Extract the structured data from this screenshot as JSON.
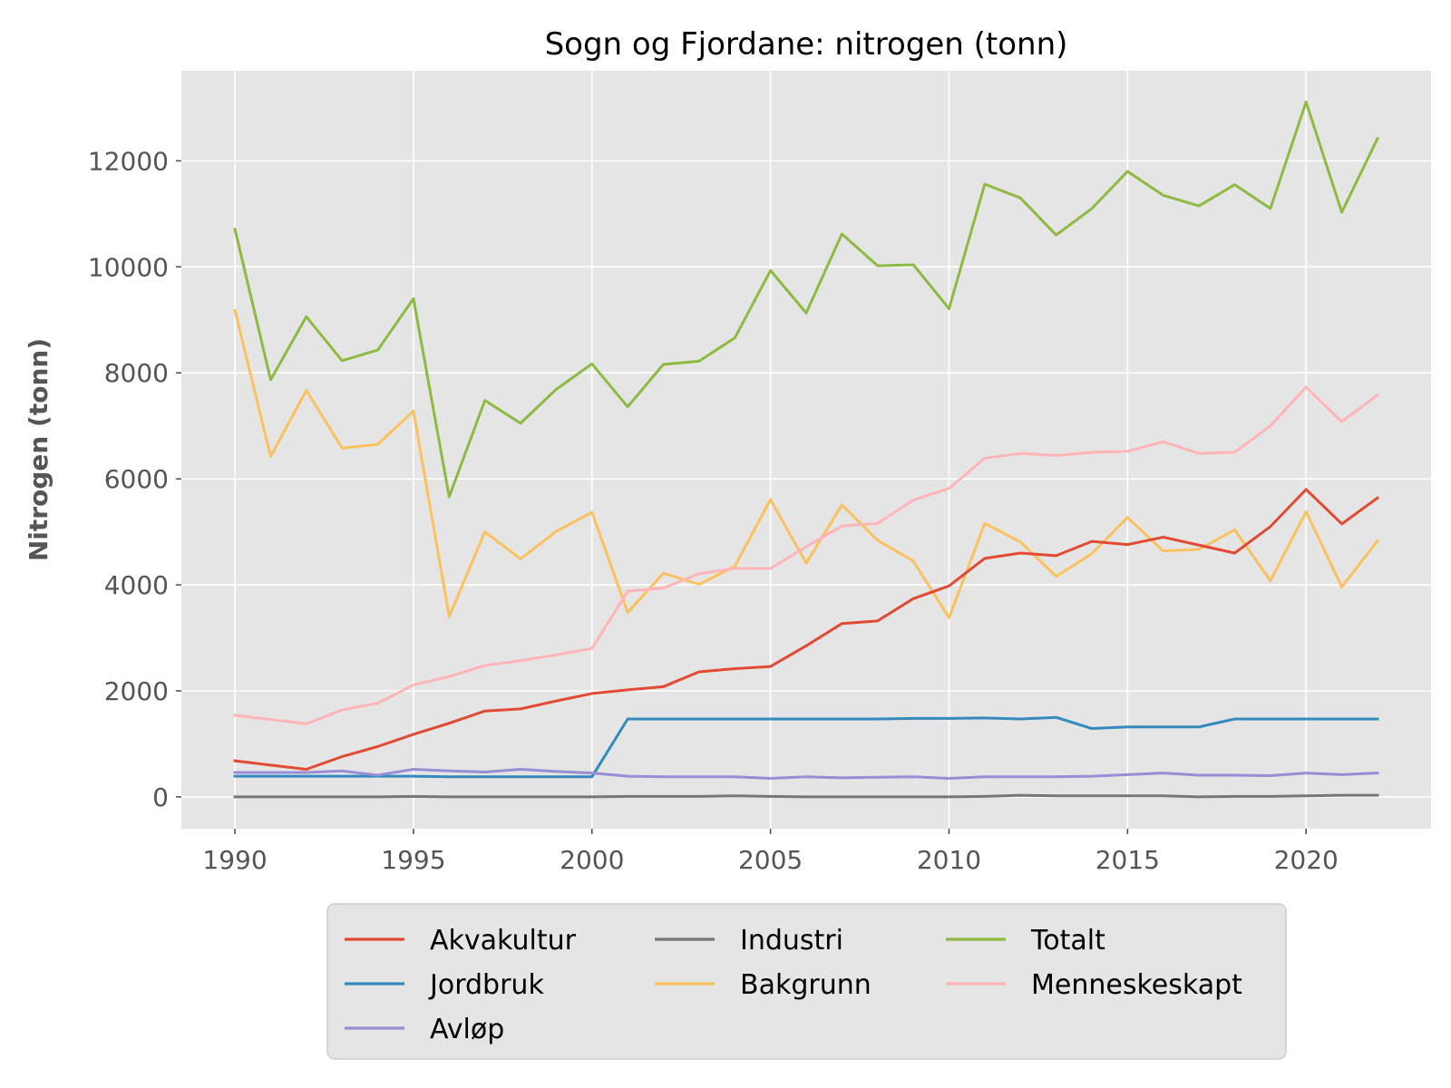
{
  "chart_data": {
    "type": "line",
    "title": "Sogn og Fjordane: nitrogen (tonn)",
    "xlabel": "",
    "ylabel": "Nitrogen (tonn)",
    "xlim": [
      1988.5,
      2023.5
    ],
    "ylim": [
      -600,
      13700
    ],
    "xticks": [
      1990,
      1995,
      2000,
      2005,
      2010,
      2015,
      2020
    ],
    "yticks": [
      0,
      2000,
      4000,
      6000,
      8000,
      10000,
      12000
    ],
    "grid": true,
    "legend_placement": "bottom-center",
    "x": [
      1990,
      1991,
      1992,
      1993,
      1994,
      1995,
      1996,
      1997,
      1998,
      1999,
      2000,
      2001,
      2002,
      2003,
      2004,
      2005,
      2006,
      2007,
      2008,
      2009,
      2010,
      2011,
      2012,
      2013,
      2014,
      2015,
      2016,
      2017,
      2018,
      2019,
      2020,
      2021,
      2022
    ],
    "series": [
      {
        "name": "Akvakultur",
        "color": "#E24A33",
        "values": [
          680,
          600,
          520,
          760,
          950,
          1180,
          1390,
          1620,
          1660,
          1810,
          1950,
          2020,
          2080,
          2360,
          2420,
          2460,
          2850,
          3270,
          3320,
          3740,
          3980,
          4500,
          4600,
          4550,
          4820,
          4760,
          4900,
          4750,
          4600,
          5100,
          5800,
          5150,
          5640
        ]
      },
      {
        "name": "Jordbruk",
        "color": "#348ABD",
        "values": [
          390,
          390,
          390,
          390,
          390,
          390,
          380,
          380,
          380,
          380,
          380,
          1470,
          1470,
          1470,
          1470,
          1470,
          1470,
          1470,
          1470,
          1480,
          1480,
          1490,
          1470,
          1500,
          1290,
          1320,
          1320,
          1320,
          1470,
          1470,
          1470,
          1470,
          1470
        ]
      },
      {
        "name": "Avløp",
        "color": "#988ED5",
        "values": [
          460,
          460,
          460,
          490,
          410,
          520,
          490,
          470,
          520,
          480,
          450,
          390,
          380,
          380,
          380,
          350,
          380,
          360,
          370,
          380,
          350,
          380,
          380,
          380,
          390,
          420,
          450,
          410,
          410,
          400,
          450,
          420,
          450
        ]
      },
      {
        "name": "Industri",
        "color": "#777777",
        "values": [
          0,
          0,
          0,
          0,
          0,
          10,
          0,
          0,
          0,
          0,
          0,
          10,
          10,
          10,
          20,
          10,
          0,
          0,
          0,
          0,
          0,
          10,
          30,
          20,
          20,
          20,
          20,
          0,
          10,
          10,
          20,
          30,
          30
        ]
      },
      {
        "name": "Bakgrunn",
        "color": "#FBC15E",
        "values": [
          9180,
          6420,
          7670,
          6580,
          6650,
          7280,
          3400,
          5000,
          4490,
          5010,
          5370,
          3480,
          4220,
          4010,
          4350,
          5610,
          4410,
          5510,
          4840,
          4450,
          3380,
          5160,
          4810,
          4160,
          4590,
          5270,
          4640,
          4670,
          5040,
          4080,
          5380,
          3960,
          4830
        ]
      },
      {
        "name": "Totalt",
        "color": "#8EBA42",
        "values": [
          10710,
          7870,
          9060,
          8230,
          8430,
          9400,
          5660,
          7480,
          7050,
          7690,
          8170,
          7360,
          8160,
          8220,
          8660,
          9930,
          9130,
          10620,
          10020,
          10040,
          9210,
          11560,
          11300,
          10600,
          11100,
          11800,
          11350,
          11150,
          11550,
          11100,
          13110,
          11030,
          12420
        ]
      },
      {
        "name": "Menneskeskapt",
        "color": "#FFB5B8",
        "values": [
          1540,
          1460,
          1380,
          1640,
          1770,
          2110,
          2270,
          2480,
          2570,
          2680,
          2800,
          3880,
          3940,
          4210,
          4310,
          4310,
          4720,
          5110,
          5160,
          5600,
          5820,
          6390,
          6480,
          6440,
          6500,
          6520,
          6700,
          6480,
          6500,
          7000,
          7730,
          7080,
          7580
        ]
      }
    ]
  }
}
